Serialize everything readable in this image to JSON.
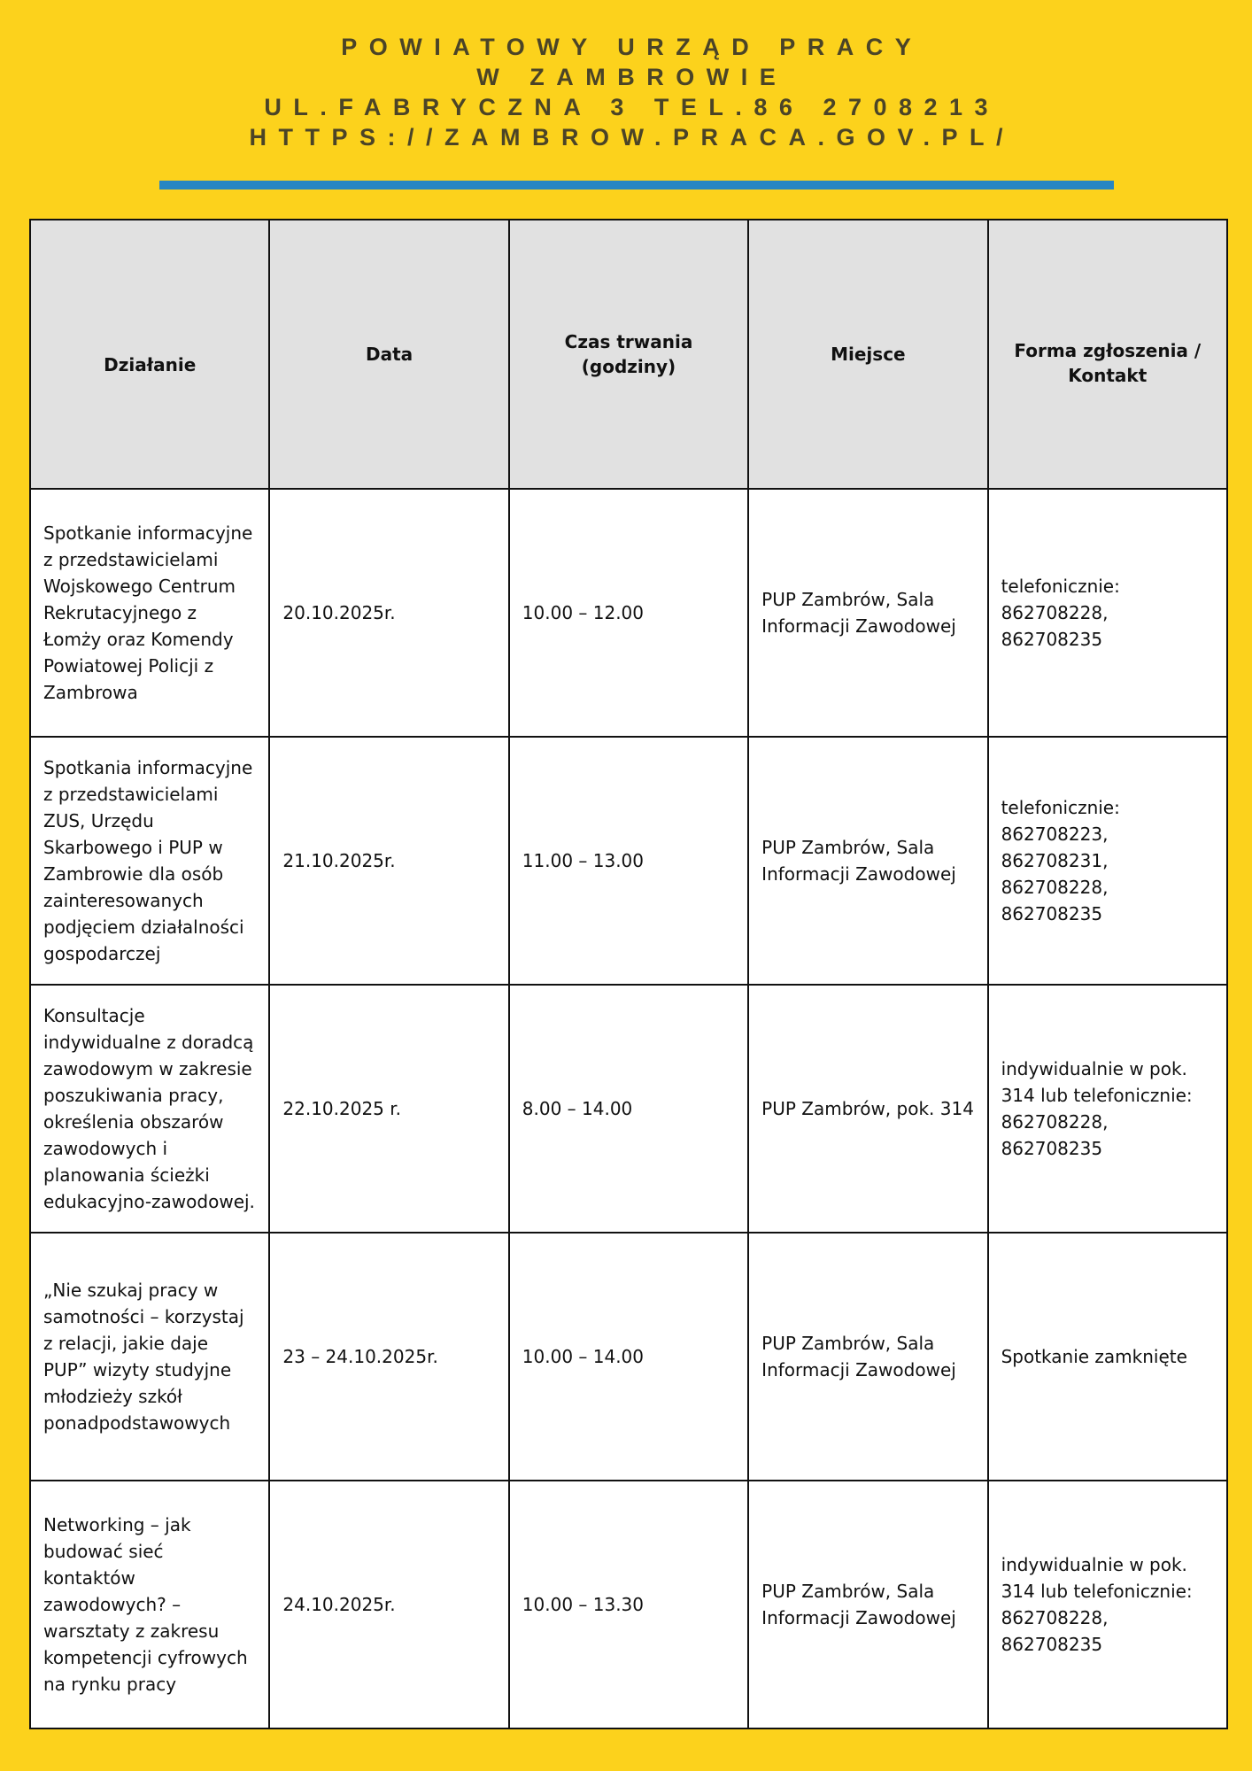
{
  "header": {
    "line1": "POWIATOWY URZĄD PRACY",
    "line2": "W ZAMBROWIE",
    "line3": "UL.FABRYCZNA 3 TEL.86 2708213",
    "line4": "HTTPS://ZAMBROW.PRACA.GOV.PL/"
  },
  "colors": {
    "background": "#FCD21C",
    "accent_bar": "#2786C4",
    "header_row": "#E1E1E1",
    "title_text": "#4B4427"
  },
  "table": {
    "columns": [
      "Działanie",
      "Data",
      "Czas trwania (godziny)",
      "Miejsce",
      "Forma zgłoszenia / Kontakt"
    ],
    "rows": [
      [
        "Spotkanie informacyjne z przedstawicielami Wojskowego Centrum Rekrutacyjnego z Łomży oraz Komendy Powiatowej Policji z Zambrowa",
        "20.10.2025r.",
        "10.00 – 12.00",
        "PUP Zambrów, Sala Informacji Zawodowej",
        "telefonicznie: 862708228, 862708235"
      ],
      [
        "Spotkania informacyjne z przedstawicielami ZUS, Urzędu Skarbowego i PUP w Zambrowie dla osób zainteresowanych podjęciem działalności gospodarczej",
        "21.10.2025r.",
        "11.00 – 13.00",
        "PUP Zambrów, Sala Informacji Zawodowej",
        "telefonicznie: 862708223, 862708231, 862708228, 862708235"
      ],
      [
        "Konsultacje indywidualne z doradcą zawodowym w zakresie poszukiwania pracy, określenia obszarów zawodowych i planowania ścieżki edukacyjno-zawodowej.",
        "22.10.2025 r.",
        "8.00 – 14.00",
        "PUP Zambrów, pok. 314",
        "indywidualnie w pok. 314 lub telefonicznie: 862708228, 862708235"
      ],
      [
        "„Nie szukaj pracy w samotności – korzystaj z relacji, jakie daje PUP” wizyty studyjne młodzieży szkół ponadpodstawowych",
        "23 – 24.10.2025r.",
        "10.00 – 14.00",
        "PUP Zambrów, Sala Informacji Zawodowej",
        "Spotkanie zamknięte"
      ],
      [
        "Networking – jak budować sieć kontaktów zawodowych? – warsztaty z zakresu kompetencji cyfrowych na rynku pracy",
        "24.10.2025r.",
        "10.00 – 13.30",
        "PUP Zambrów, Sala Informacji Zawodowej",
        "indywidualnie w pok. 314 lub telefonicznie: 862708228, 862708235"
      ]
    ]
  }
}
